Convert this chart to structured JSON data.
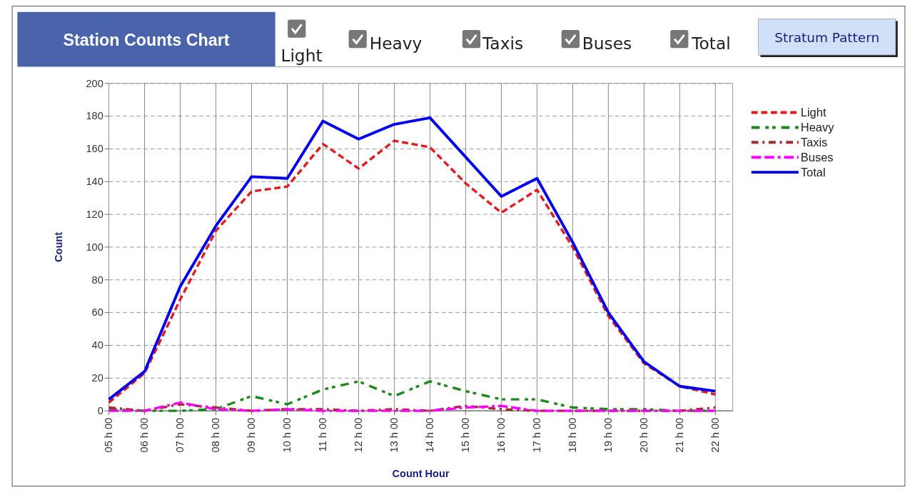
{
  "chart_data": {
    "type": "line",
    "title": "Station Counts Chart",
    "xlabel": "Count Hour",
    "ylabel": "Count",
    "categories": [
      "05 h 00",
      "06 h 00",
      "07 h 00",
      "08 h 00",
      "09 h 00",
      "10 h 00",
      "11 h 00",
      "12 h 00",
      "13 h 00",
      "14 h 00",
      "15 h 00",
      "16 h 00",
      "17 h 00",
      "18 h 00",
      "19 h 00",
      "20 h 00",
      "21 h 00",
      "22 h 00"
    ],
    "series": [
      {
        "name": "Light",
        "color": "#e41a1c",
        "line_style": "dashed",
        "values": [
          5,
          23,
          68,
          110,
          134,
          137,
          163,
          148,
          165,
          161,
          139,
          121,
          135,
          100,
          58,
          29,
          15,
          10
        ]
      },
      {
        "name": "Heavy",
        "color": "#1a8a1a",
        "line_style": "dashdotdot",
        "values": [
          1,
          0,
          0,
          1,
          9,
          4,
          13,
          18,
          9,
          18,
          12,
          7,
          7,
          2,
          1,
          1,
          0,
          0
        ]
      },
      {
        "name": "Taxis",
        "color": "#a52a2a",
        "line_style": "dashdot",
        "values": [
          2,
          0,
          4,
          2,
          0,
          1,
          1,
          0,
          1,
          0,
          3,
          1,
          0,
          0,
          0,
          0,
          0,
          2
        ]
      },
      {
        "name": "Buses",
        "color": "#ff00ff",
        "line_style": "longdash",
        "values": [
          0,
          0,
          5,
          1,
          0,
          1,
          0,
          0,
          0,
          0,
          2,
          3,
          0,
          0,
          0,
          0,
          0,
          0
        ]
      },
      {
        "name": "Total",
        "color": "#0000ee",
        "line_style": "solid",
        "values": [
          7,
          24,
          76,
          113,
          143,
          142,
          177,
          166,
          175,
          179,
          155,
          131,
          142,
          103,
          60,
          30,
          15,
          12
        ]
      }
    ],
    "ylim": [
      0,
      200
    ],
    "yticks": [
      0,
      20,
      40,
      60,
      80,
      100,
      120,
      140,
      160,
      180,
      200
    ],
    "grid": true,
    "legend": "right",
    "marker": "none",
    "annotations": [
      "Stratum Pattern"
    ]
  }
}
